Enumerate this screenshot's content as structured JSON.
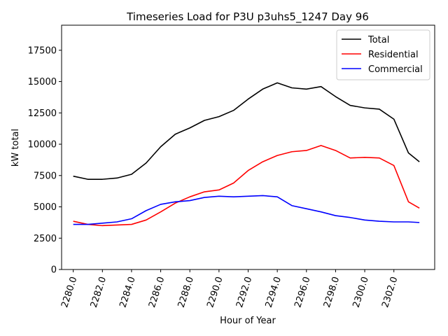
{
  "chart_data": {
    "type": "line",
    "title": "Timeseries Load for P3U p3uhs5_1247  Day 96",
    "xlabel": "Hour of Year",
    "ylabel": "kW total",
    "xlim": [
      2279.2,
      2304.8
    ],
    "ylim": [
      0,
      19500
    ],
    "xticks": [
      2280,
      2282,
      2284,
      2286,
      2288,
      2290,
      2292,
      2294,
      2296,
      2298,
      2300,
      2302
    ],
    "xtick_labels": [
      "2280.0",
      "2282.0",
      "2284.0",
      "2286.0",
      "2288.0",
      "2290.0",
      "2292.0",
      "2294.0",
      "2296.0",
      "2298.0",
      "2300.0",
      "2302.0"
    ],
    "yticks": [
      0,
      2500,
      5000,
      7500,
      10000,
      12500,
      15000,
      17500
    ],
    "ytick_labels": [
      "0",
      "2500",
      "5000",
      "7500",
      "10000",
      "12500",
      "15000",
      "17500"
    ],
    "legend_position": "upper right",
    "x": [
      2280,
      2281,
      2282,
      2283,
      2284,
      2285,
      2286,
      2287,
      2288,
      2289,
      2290,
      2291,
      2292,
      2293,
      2294,
      2295,
      2296,
      2297,
      2298,
      2299,
      2300,
      2301,
      2302,
      2303,
      2303.75
    ],
    "series": [
      {
        "name": "Total",
        "color": "#000000",
        "values": [
          7450,
          7200,
          7200,
          7300,
          7600,
          8500,
          9800,
          10800,
          11300,
          11900,
          12200,
          12700,
          13600,
          14400,
          14900,
          14500,
          14400,
          14600,
          13800,
          13100,
          12900,
          12800,
          12000,
          9300,
          8600
        ]
      },
      {
        "name": "Residential",
        "color": "#ff0000",
        "values": [
          3850,
          3600,
          3500,
          3550,
          3600,
          3950,
          4600,
          5300,
          5800,
          6200,
          6350,
          6900,
          7900,
          8600,
          9100,
          9400,
          9500,
          9900,
          9500,
          8900,
          8950,
          8900,
          8300,
          5400,
          4900
        ]
      },
      {
        "name": "Commercial",
        "color": "#0000ff",
        "values": [
          3600,
          3600,
          3700,
          3800,
          4050,
          4700,
          5200,
          5400,
          5500,
          5750,
          5850,
          5800,
          5850,
          5900,
          5800,
          5100,
          4850,
          4600,
          4300,
          4150,
          3950,
          3850,
          3800,
          3800,
          3750
        ]
      }
    ]
  }
}
